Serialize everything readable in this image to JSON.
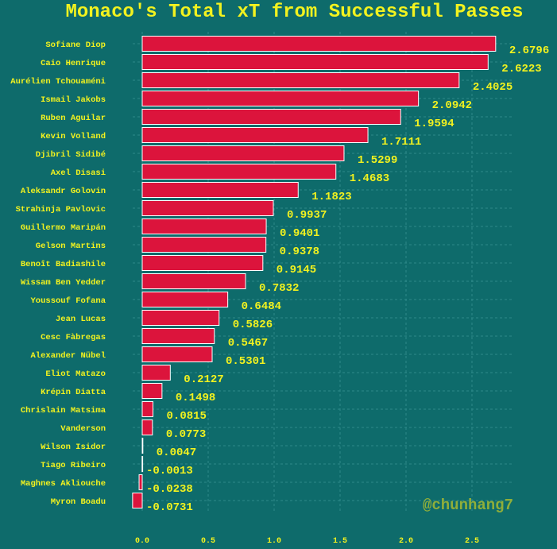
{
  "chart_data": {
    "type": "bar",
    "orientation": "horizontal",
    "title": "Monaco's Total xT from Successful Passes",
    "categories": [
      "Sofiane Diop",
      "Caio Henrique",
      "Aurélien Tchouaméni",
      "Ismail Jakobs",
      "Ruben Aguilar",
      "Kevin Volland",
      "Djibril Sidibé",
      "Axel Disasi",
      "Aleksandr Golovin",
      "Strahinja Pavlovic",
      "Guillermo Maripán",
      "Gelson Martins",
      "Benoît Badiashile",
      "Wissam Ben Yedder",
      "Youssouf Fofana",
      "Jean Lucas",
      "Cesc Fàbregas",
      "Alexander Nübel",
      "Eliot Matazo",
      "Krépin Diatta",
      "Chrislain Matsima",
      "Vanderson",
      "Wilson Isidor",
      "Tiago Ribeiro",
      "Maghnes Akliouche",
      "Myron Boadu"
    ],
    "values": [
      2.6796,
      2.6223,
      2.4025,
      2.0942,
      1.9594,
      1.7111,
      1.5299,
      1.4683,
      1.1823,
      0.9937,
      0.9401,
      0.9378,
      0.9145,
      0.7832,
      0.6484,
      0.5826,
      0.5467,
      0.5301,
      0.2127,
      0.1498,
      0.0815,
      0.0773,
      0.0047,
      -0.0013,
      -0.0238,
      -0.0731
    ],
    "value_labels": [
      "2.6796",
      "2.6223",
      "2.4025",
      "2.0942",
      "1.9594",
      "1.7111",
      "1.5299",
      "1.4683",
      "1.1823",
      "0.9937",
      "0.9401",
      "0.9378",
      "0.9145",
      "0.7832",
      "0.6484",
      "0.5826",
      "0.5467",
      "0.5301",
      "0.2127",
      "0.1498",
      "0.0815",
      "0.0773",
      "0.0047",
      "-0.0013",
      "-0.0238",
      "-0.0731"
    ],
    "xticks": [
      "0.0",
      "0.5",
      "1.0",
      "1.5",
      "2.0",
      "2.5"
    ],
    "xtick_values": [
      0,
      0.5,
      1.0,
      1.5,
      2.0,
      2.5
    ],
    "xlim": [
      -0.08,
      2.8
    ],
    "xlabel": "",
    "ylabel": "",
    "grid": true,
    "colors": {
      "background": "#0e6b6b",
      "bar": "#dc143c",
      "bar_edge": "#ffffff",
      "text": "#f2f21f",
      "grid": "#2d8a8a"
    }
  },
  "watermark": "@chunhang7"
}
